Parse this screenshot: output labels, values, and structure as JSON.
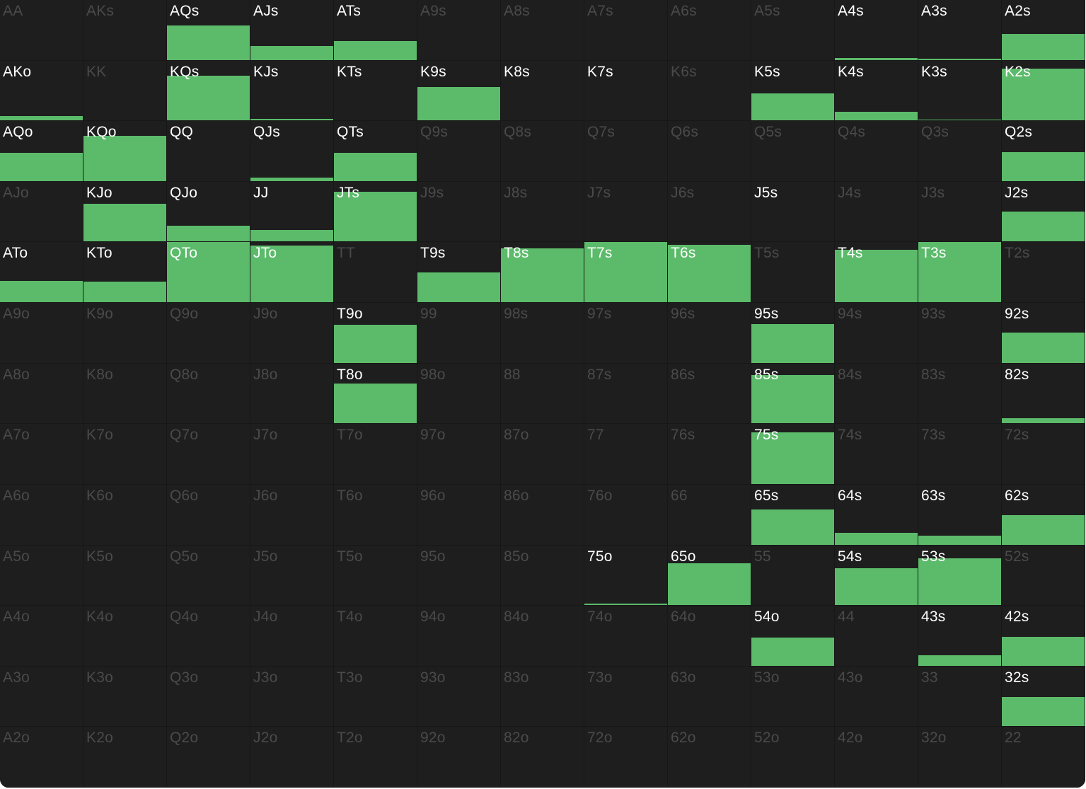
{
  "colors": {
    "background": "#1e1e1e",
    "bar": "#5bbb6a",
    "active_label": "#ffffff",
    "inactive_label": "#4a4a4a"
  },
  "hands": [
    [
      "AA",
      "AKs",
      "AQs",
      "AJs",
      "ATs",
      "A9s",
      "A8s",
      "A7s",
      "A6s",
      "A5s",
      "A4s",
      "A3s",
      "A2s"
    ],
    [
      "AKo",
      "KK",
      "KQs",
      "KJs",
      "KTs",
      "K9s",
      "K8s",
      "K7s",
      "K6s",
      "K5s",
      "K4s",
      "K3s",
      "K2s"
    ],
    [
      "AQo",
      "KQo",
      "QQ",
      "QJs",
      "QTs",
      "Q9s",
      "Q8s",
      "Q7s",
      "Q6s",
      "Q5s",
      "Q4s",
      "Q3s",
      "Q2s"
    ],
    [
      "AJo",
      "KJo",
      "QJo",
      "JJ",
      "JTs",
      "J9s",
      "J8s",
      "J7s",
      "J6s",
      "J5s",
      "J4s",
      "J3s",
      "J2s"
    ],
    [
      "ATo",
      "KTo",
      "QTo",
      "JTo",
      "TT",
      "T9s",
      "T8s",
      "T7s",
      "T6s",
      "T5s",
      "T4s",
      "T3s",
      "T2s"
    ],
    [
      "A9o",
      "K9o",
      "Q9o",
      "J9o",
      "T9o",
      "99",
      "98s",
      "97s",
      "96s",
      "95s",
      "94s",
      "93s",
      "92s"
    ],
    [
      "A8o",
      "K8o",
      "Q8o",
      "J8o",
      "T8o",
      "98o",
      "88",
      "87s",
      "86s",
      "85s",
      "84s",
      "83s",
      "82s"
    ],
    [
      "A7o",
      "K7o",
      "Q7o",
      "J7o",
      "T7o",
      "97o",
      "87o",
      "77",
      "76s",
      "75s",
      "74s",
      "73s",
      "72s"
    ],
    [
      "A6o",
      "K6o",
      "Q6o",
      "J6o",
      "T6o",
      "96o",
      "86o",
      "76o",
      "66",
      "65s",
      "64s",
      "63s",
      "62s"
    ],
    [
      "A5o",
      "K5o",
      "Q5o",
      "J5o",
      "T5o",
      "95o",
      "85o",
      "75o",
      "65o",
      "55",
      "54s",
      "53s",
      "52s"
    ],
    [
      "A4o",
      "K4o",
      "Q4o",
      "J4o",
      "T4o",
      "94o",
      "84o",
      "74o",
      "64o",
      "54o",
      "44",
      "43s",
      "42s"
    ],
    [
      "A3o",
      "K3o",
      "Q3o",
      "J3o",
      "T3o",
      "93o",
      "83o",
      "73o",
      "63o",
      "53o",
      "43o",
      "33",
      "32s"
    ],
    [
      "A2o",
      "K2o",
      "Q2o",
      "J2o",
      "T2o",
      "92o",
      "82o",
      "72o",
      "62o",
      "52o",
      "42o",
      "32o",
      "22"
    ]
  ],
  "frequencies": [
    [
      0,
      0,
      0.57,
      0.23,
      0.32,
      0,
      0,
      0,
      0,
      0,
      0.03,
      0.02,
      0.43
    ],
    [
      0.07,
      0,
      0.75,
      0.03,
      0,
      0.56,
      0,
      0,
      0,
      0.45,
      0.14,
      0.01,
      0.87
    ],
    [
      0.47,
      0.75,
      0,
      0.06,
      0.47,
      0,
      0,
      0,
      0,
      0,
      0,
      0,
      0.48
    ],
    [
      0,
      0.63,
      0.27,
      0.19,
      0.83,
      0,
      0,
      0,
      0,
      0,
      0,
      0,
      0.5
    ],
    [
      0.36,
      0.34,
      1,
      0.95,
      0,
      0.5,
      0.9,
      1,
      0.96,
      0,
      0.87,
      1,
      0
    ],
    [
      0,
      0,
      0,
      0,
      0.63,
      0,
      0,
      0,
      0,
      0.65,
      0,
      0,
      0.51
    ],
    [
      0,
      0,
      0,
      0,
      0.67,
      0,
      0,
      0,
      0,
      0.81,
      0,
      0,
      0.09
    ],
    [
      0,
      0,
      0,
      0,
      0,
      0,
      0,
      0,
      0,
      0.86,
      0,
      0,
      0
    ],
    [
      0,
      0,
      0,
      0,
      0,
      0,
      0,
      0,
      0,
      0.58,
      0.2,
      0.15,
      0.49
    ],
    [
      0,
      0,
      0,
      0,
      0,
      0,
      0,
      0.02,
      0.7,
      0,
      0.62,
      0.78,
      0
    ],
    [
      0,
      0,
      0,
      0,
      0,
      0,
      0,
      0,
      0,
      0.47,
      0,
      0.18,
      0.48
    ],
    [
      0,
      0,
      0,
      0,
      0,
      0,
      0,
      0,
      0,
      0,
      0,
      0,
      0.49
    ],
    [
      0,
      0,
      0,
      0,
      0,
      0,
      0,
      0,
      0,
      0,
      0,
      0,
      0
    ]
  ],
  "active": [
    [
      0,
      0,
      1,
      1,
      1,
      0,
      0,
      0,
      0,
      0,
      1,
      1,
      1
    ],
    [
      1,
      0,
      1,
      1,
      1,
      1,
      1,
      1,
      0,
      1,
      1,
      1,
      1
    ],
    [
      1,
      1,
      1,
      1,
      1,
      0,
      0,
      0,
      0,
      0,
      0,
      0,
      1
    ],
    [
      0,
      1,
      1,
      1,
      1,
      0,
      0,
      0,
      0,
      1,
      0,
      0,
      1
    ],
    [
      1,
      1,
      1,
      1,
      0,
      1,
      1,
      1,
      1,
      0,
      1,
      1,
      0
    ],
    [
      0,
      0,
      0,
      0,
      1,
      0,
      0,
      0,
      0,
      1,
      0,
      0,
      1
    ],
    [
      0,
      0,
      0,
      0,
      1,
      0,
      0,
      0,
      0,
      1,
      0,
      0,
      1
    ],
    [
      0,
      0,
      0,
      0,
      0,
      0,
      0,
      0,
      0,
      1,
      0,
      0,
      0
    ],
    [
      0,
      0,
      0,
      0,
      0,
      0,
      0,
      0,
      0,
      1,
      1,
      1,
      1
    ],
    [
      0,
      0,
      0,
      0,
      0,
      0,
      0,
      1,
      1,
      0,
      1,
      1,
      0
    ],
    [
      0,
      0,
      0,
      0,
      0,
      0,
      0,
      0,
      0,
      1,
      0,
      1,
      1
    ],
    [
      0,
      0,
      0,
      0,
      0,
      0,
      0,
      0,
      0,
      0,
      0,
      0,
      1
    ],
    [
      0,
      0,
      0,
      0,
      0,
      0,
      0,
      0,
      0,
      0,
      0,
      0,
      0
    ]
  ]
}
